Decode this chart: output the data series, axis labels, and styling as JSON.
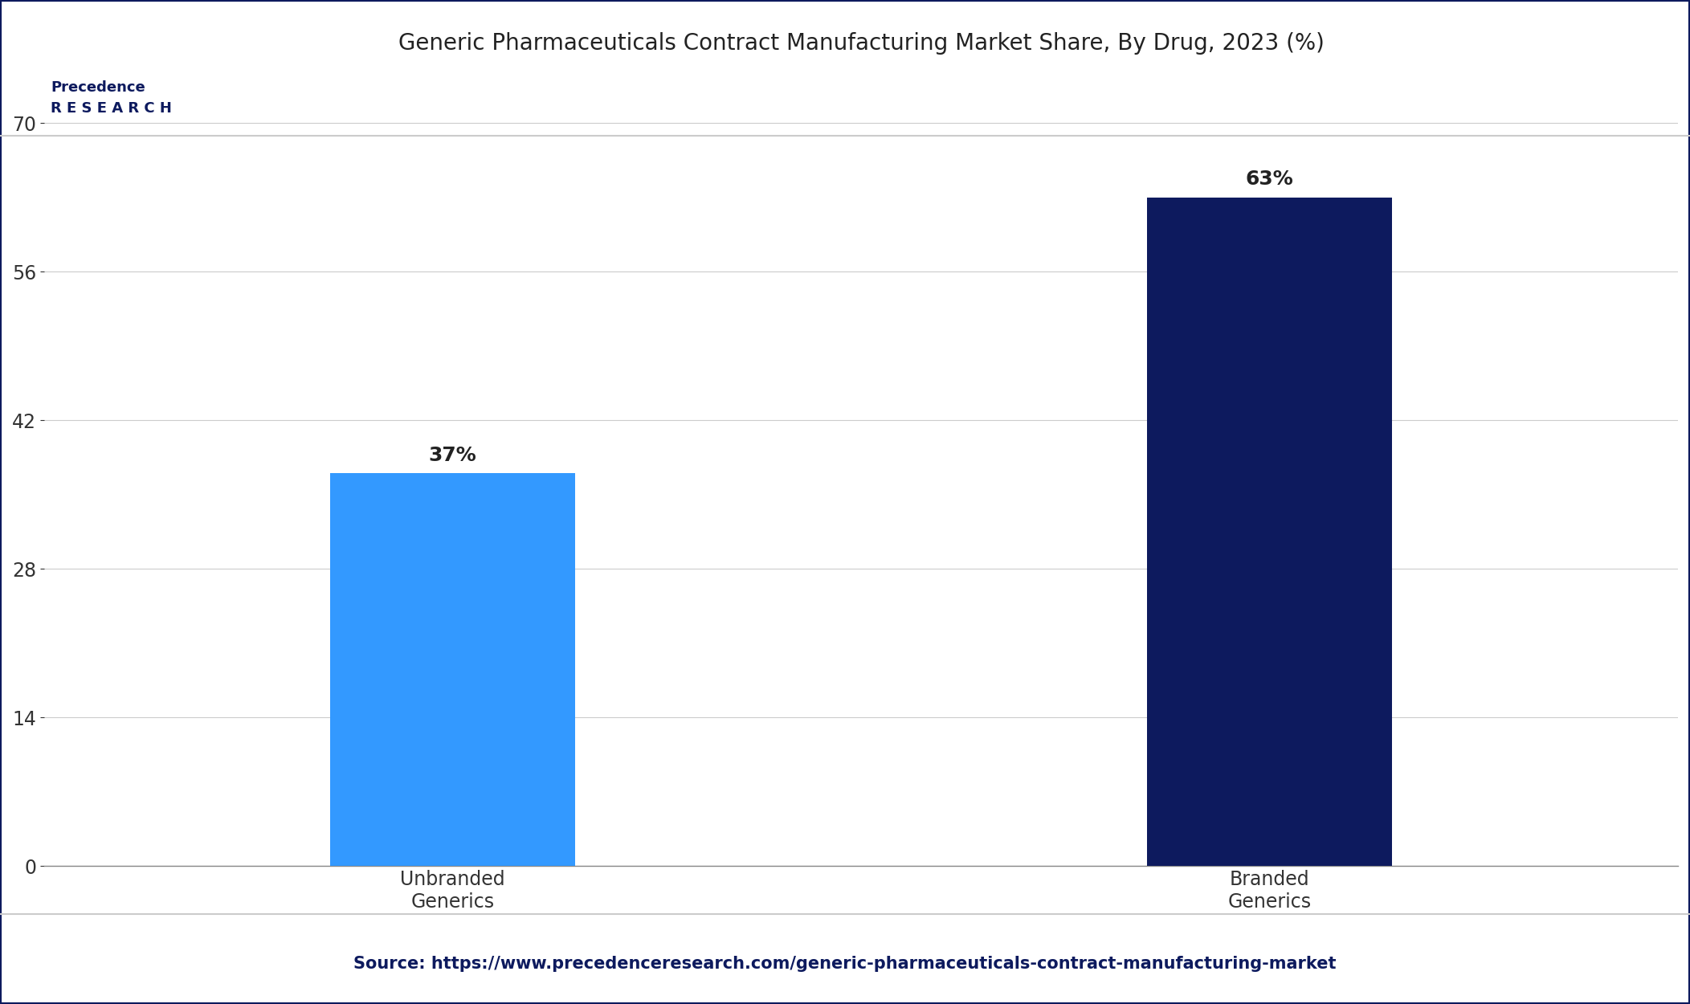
{
  "title": "Generic Pharmaceuticals Contract Manufacturing Market Share, By Drug, 2023 (%)",
  "categories": [
    "Unbranded\nGenerics",
    "Branded\nGenerics"
  ],
  "values": [
    37,
    63
  ],
  "labels": [
    "37%",
    "63%"
  ],
  "bar_colors": [
    "#3399ff",
    "#0d1a5e"
  ],
  "yticks": [
    0,
    14,
    28,
    42,
    56,
    70
  ],
  "ylim": [
    0,
    75
  ],
  "background_color": "#ffffff",
  "title_fontsize": 20,
  "tick_fontsize": 17,
  "label_fontsize": 18,
  "source_text": "Source: https://www.precedenceresearch.com/generic-pharmaceuticals-contract-manufacturing-market",
  "source_color": "#0d1a5e",
  "source_fontsize": 15,
  "border_color": "#0d1a5e",
  "grid_color": "#cccccc"
}
